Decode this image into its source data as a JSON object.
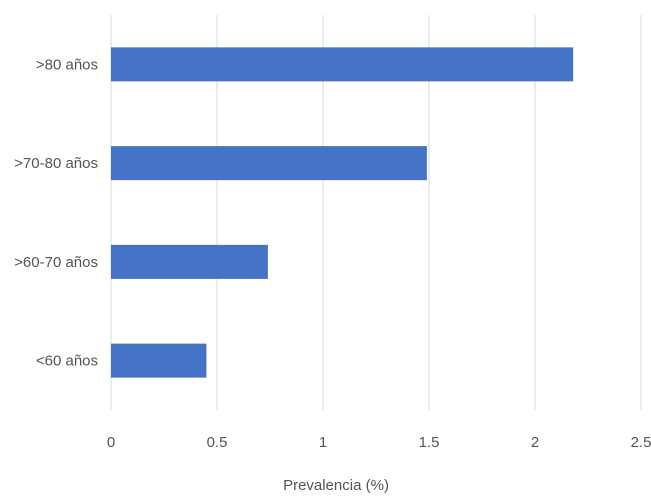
{
  "chart_data": {
    "type": "bar",
    "orientation": "horizontal",
    "categories": [
      ">80 años",
      ">70-80 años",
      ">60-70 años",
      "<60 años"
    ],
    "values": [
      2.18,
      1.49,
      0.74,
      0.45
    ],
    "xlabel": "Prevalencia (%)",
    "ylabel": "",
    "xlim": [
      0,
      2.5
    ],
    "xticks": [
      "0",
      "0.5",
      "1",
      "1.5",
      "2",
      "2.5"
    ],
    "grid": true,
    "bar_color": "#4472C4",
    "grid_color": "#D9D9D9"
  }
}
